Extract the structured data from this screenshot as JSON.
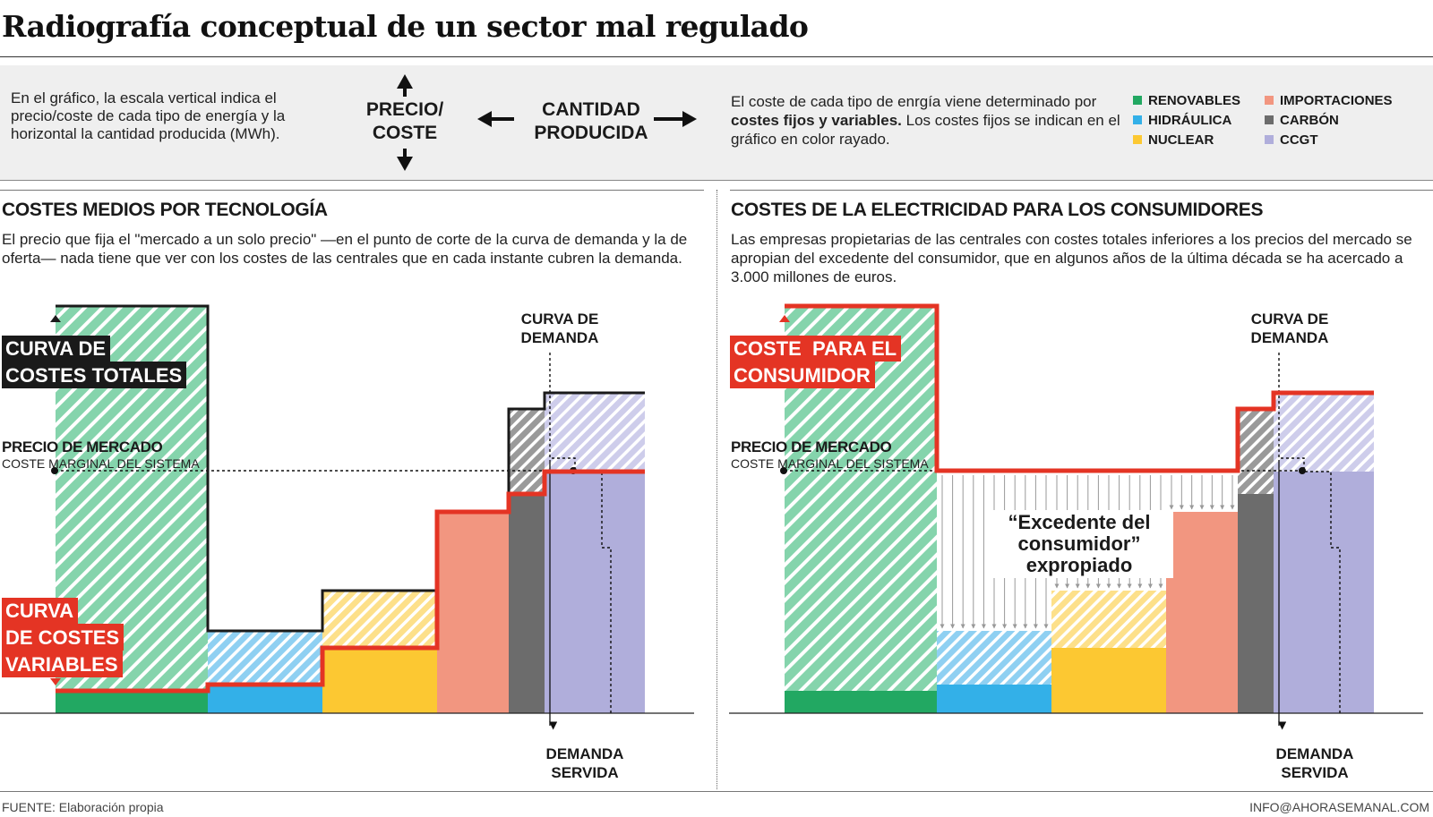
{
  "title": "Radiografía conceptual de un sector mal regulado",
  "intro": {
    "text": "En el gráfico, la escala vertical indica el precio/coste de cada tipo de energía y la horizontal la cantidad producida (MWh).",
    "axis_vertical": [
      "PRECIO/",
      "COSTE"
    ],
    "axis_horizontal": [
      "CANTIDAD",
      "PRODUCIDA"
    ],
    "cost_text_1": "El coste de cada tipo de enrgía viene determinado por ",
    "cost_text_bold": "costes fijos y variables.",
    "cost_text_2": " Los costes fijos se indican en el gráfico en color rayado."
  },
  "legend": [
    {
      "label": "RENOVABLES",
      "color": "#22a862"
    },
    {
      "label": "HIDRÁULICA",
      "color": "#33b0e8"
    },
    {
      "label": "NUCLEAR",
      "color": "#fcc832"
    },
    {
      "label": "IMPORTACIONES",
      "color": "#f29680"
    },
    {
      "label": "CARBÓN",
      "color": "#6c6c6c"
    },
    {
      "label": "CCGT",
      "color": "#b0aedb"
    }
  ],
  "left": {
    "title": "COSTES MEDIOS POR TECNOLOGÍA",
    "text": "El precio que fija el \"mercado a un solo precio\" —en el punto de corte de la curva de demanda y la de oferta— nada tiene que ver con los costes de las centrales que en cada instante cubren la demanda.",
    "total_curve_label": [
      "CURVA DE",
      "COSTES TOTALES"
    ],
    "variable_curve_label": [
      "CURVA",
      "DE COSTES",
      "VARIABLES"
    ],
    "market_price_label": "PRECIO DE MERCADO",
    "marginal_cost_label": "COSTE MARGINAL DEL SISTEMA",
    "demand_curve_label": [
      "CURVA DE",
      "DEMANDA"
    ],
    "demand_served_label": [
      "DEMANDA",
      "SERVIDA"
    ]
  },
  "right": {
    "title": "COSTES DE LA ELECTRICIDAD PARA LOS CONSUMIDORES",
    "text": "Las empresas propietarias de las centrales con costes totales inferiores a los precios del mercado se apropian del excedente del consumidor, que en algunos años de la última década se ha acercado a 3.000 millones de euros.",
    "consumer_cost_label": [
      "COSTE  PARA EL",
      "CONSUMIDOR"
    ],
    "market_price_label": "PRECIO DE MERCADO",
    "marginal_cost_label": "COSTE MARGINAL DEL SISTEMA",
    "demand_curve_label": [
      "CURVA DE",
      "DEMANDA"
    ],
    "demand_served_label": [
      "DEMANDA",
      "SERVIDA"
    ],
    "surplus_label": [
      "“Excedente del",
      "consumidor”",
      "expropiado"
    ]
  },
  "chart_data": [
    {
      "type": "bar",
      "title": "COSTES MEDIOS POR TECNOLOGÍA",
      "categories": [
        "RENOVABLES",
        "HIDRÁULICA",
        "NUCLEAR",
        "IMPORTACIONES",
        "CARBÓN",
        "CCGT"
      ],
      "widths": [
        170,
        128,
        128,
        80,
        40,
        112
      ],
      "fixed_plus_variable_cost": [
        455,
        92,
        137,
        225,
        340,
        358
      ],
      "variable_cost": [
        25,
        32,
        73,
        225,
        245,
        270
      ],
      "market_price": 271,
      "demand_served": 657
    },
    {
      "type": "bar",
      "title": "COSTES DE LA ELECTRICIDAD PARA LOS CONSUMIDORES",
      "categories": [
        "RENOVABLES",
        "HIDRÁULICA",
        "NUCLEAR",
        "IMPORTACIONES",
        "CARBÓN",
        "CCGT"
      ],
      "widths": [
        170,
        128,
        128,
        80,
        40,
        112
      ],
      "fixed_plus_variable_cost": [
        455,
        92,
        137,
        225,
        340,
        358
      ],
      "variable_cost": [
        25,
        32,
        73,
        225,
        245,
        270
      ],
      "market_price": 271,
      "consumer_cost": [
        455,
        271,
        271,
        271,
        340,
        358
      ],
      "demand_served": 657
    }
  ],
  "footer": {
    "source": "FUENTE: Elaboración propia",
    "contact": "INFO@AHORASEMANAL.COM"
  }
}
